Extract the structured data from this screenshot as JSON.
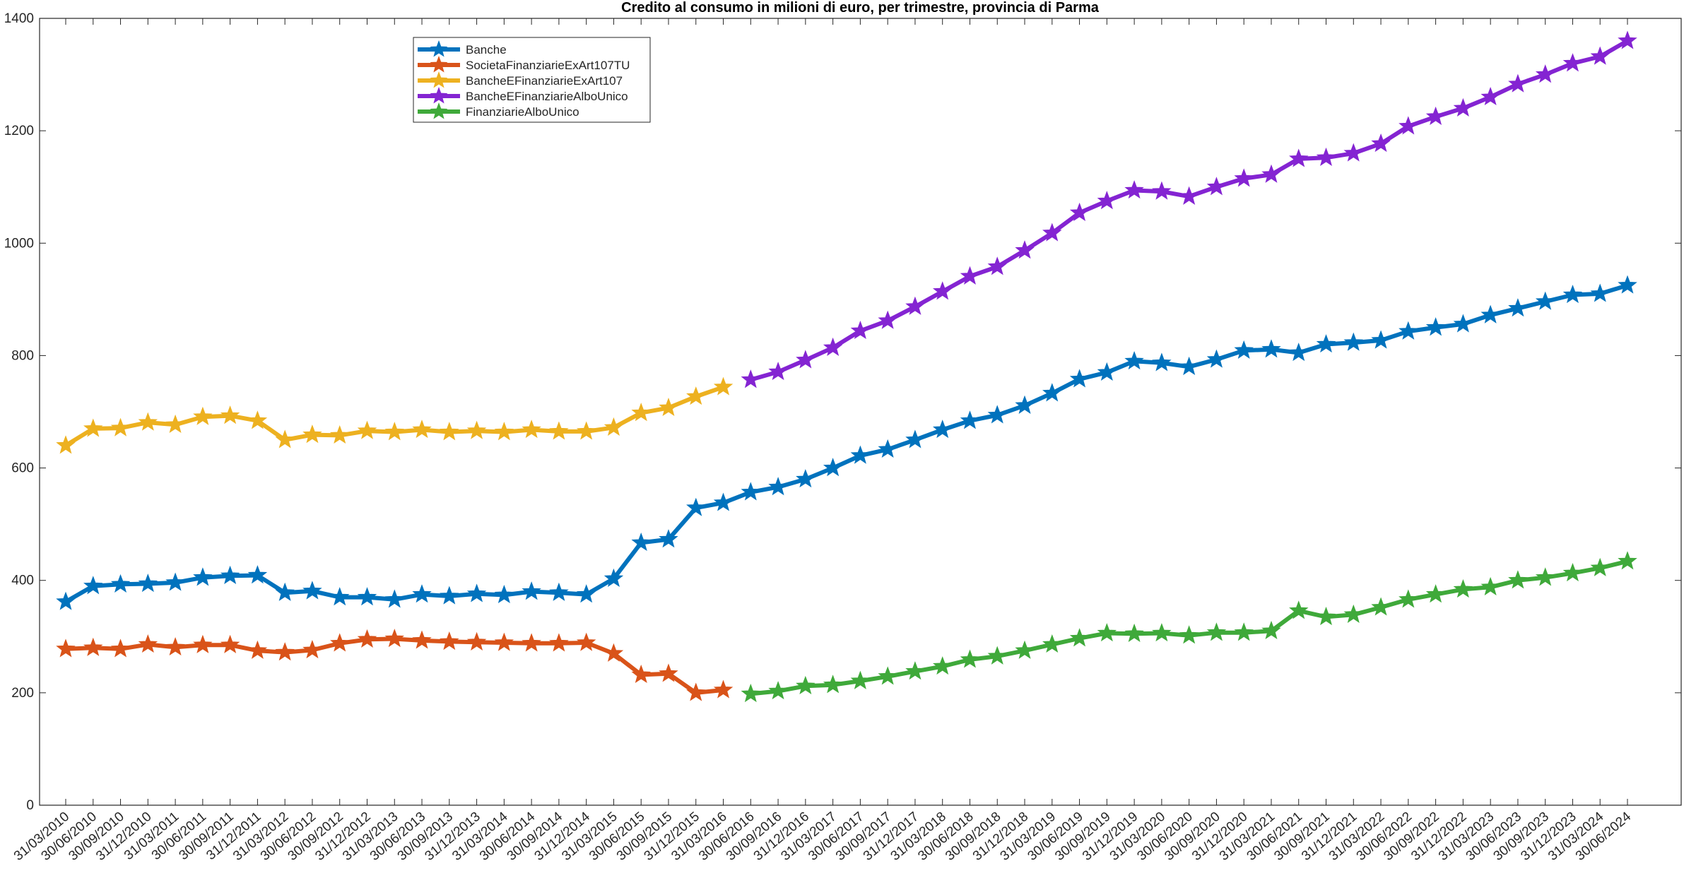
{
  "chart_data": {
    "type": "line",
    "title": "Credito al consumo in milioni di euro, per trimestre, provincia di Parma",
    "categories": [
      "31/03/2010",
      "30/06/2010",
      "30/09/2010",
      "31/12/2010",
      "31/03/2011",
      "30/06/2011",
      "30/09/2011",
      "31/12/2011",
      "31/03/2012",
      "30/06/2012",
      "30/09/2012",
      "31/12/2012",
      "31/03/2013",
      "30/06/2013",
      "30/09/2013",
      "31/12/2013",
      "31/03/2014",
      "30/06/2014",
      "30/09/2014",
      "31/12/2014",
      "31/03/2015",
      "30/06/2015",
      "30/09/2015",
      "31/12/2015",
      "31/03/2016",
      "30/06/2016",
      "30/09/2016",
      "31/12/2016",
      "31/03/2017",
      "30/06/2017",
      "30/09/2017",
      "31/12/2017",
      "31/03/2018",
      "30/06/2018",
      "30/09/2018",
      "31/12/2018",
      "31/03/2019",
      "30/06/2019",
      "30/09/2019",
      "31/12/2019",
      "31/03/2020",
      "30/06/2020",
      "30/09/2020",
      "31/12/2020",
      "31/03/2021",
      "30/06/2021",
      "30/09/2021",
      "31/12/2021",
      "31/03/2022",
      "30/06/2022",
      "30/09/2022",
      "31/12/2022",
      "31/03/2023",
      "30/06/2023",
      "30/09/2023",
      "31/12/2023",
      "31/03/2024",
      "30/06/2024"
    ],
    "series": [
      {
        "name": "Banche",
        "color": "#0072bd",
        "values": [
          362,
          390,
          393,
          394,
          396,
          405,
          408,
          409,
          378,
          381,
          370,
          370,
          366,
          375,
          372,
          376,
          374,
          380,
          378,
          375,
          403,
          467,
          473,
          529,
          538,
          557,
          566,
          580,
          600,
          622,
          633,
          650,
          668,
          684,
          694,
          711,
          733,
          758,
          770,
          790,
          787,
          780,
          793,
          809,
          811,
          805,
          820,
          823,
          827,
          843,
          850,
          856,
          872,
          884,
          896,
          908,
          910,
          925
        ]
      },
      {
        "name": "SocietaFinanziarieExArt107TU",
        "color": "#d95319",
        "values": [
          278,
          280,
          278,
          286,
          281,
          285,
          285,
          275,
          272,
          276,
          288,
          295,
          296,
          293,
          291,
          290,
          289,
          288,
          288,
          289,
          270,
          232,
          234,
          200,
          205,
          null,
          null,
          null,
          null,
          null,
          null,
          null,
          null,
          null,
          null,
          null,
          null,
          null,
          null,
          null,
          null,
          null,
          null,
          null,
          null,
          null,
          null,
          null,
          null,
          null,
          null,
          null,
          null,
          null,
          null,
          null,
          null,
          null
        ]
      },
      {
        "name": "BancheEFinanziarieExArt107",
        "color": "#edb120",
        "values": [
          640,
          670,
          671,
          681,
          677,
          691,
          693,
          684,
          650,
          659,
          658,
          666,
          664,
          668,
          664,
          666,
          664,
          668,
          665,
          665,
          672,
          698,
          707,
          727,
          744,
          null,
          null,
          null,
          null,
          null,
          null,
          null,
          null,
          null,
          null,
          null,
          null,
          null,
          null,
          null,
          null,
          null,
          null,
          null,
          null,
          null,
          null,
          null,
          null,
          null,
          null,
          null,
          null,
          null,
          null,
          null,
          null,
          null
        ]
      },
      {
        "name": "BancheEFinanziarieAlboUnico",
        "color": "#8424d2",
        "values": [
          null,
          null,
          null,
          null,
          null,
          null,
          null,
          null,
          null,
          null,
          null,
          null,
          null,
          null,
          null,
          null,
          null,
          null,
          null,
          null,
          null,
          null,
          null,
          null,
          null,
          757,
          771,
          792,
          814,
          844,
          862,
          887,
          914,
          941,
          958,
          987,
          1018,
          1054,
          1075,
          1094,
          1092,
          1083,
          1100,
          1115,
          1122,
          1150,
          1152,
          1160,
          1177,
          1208,
          1225,
          1240,
          1260,
          1283,
          1300,
          1320,
          1332,
          1360
        ]
      },
      {
        "name": "FinanziarieAlboUnico",
        "color": "#3fa93a",
        "values": [
          null,
          null,
          null,
          null,
          null,
          null,
          null,
          null,
          null,
          null,
          null,
          null,
          null,
          null,
          null,
          null,
          null,
          null,
          null,
          null,
          null,
          null,
          null,
          null,
          null,
          198,
          203,
          212,
          214,
          221,
          229,
          238,
          247,
          259,
          265,
          275,
          286,
          297,
          306,
          305,
          306,
          302,
          307,
          307,
          310,
          346,
          335,
          339,
          352,
          366,
          375,
          384,
          388,
          400,
          405,
          413,
          422,
          434
        ]
      }
    ],
    "ylim": [
      0,
      1400
    ],
    "yticks": [
      0,
      200,
      400,
      600,
      800,
      1000,
      1200,
      1400
    ],
    "legend_location": "northwest",
    "grid": false
  }
}
